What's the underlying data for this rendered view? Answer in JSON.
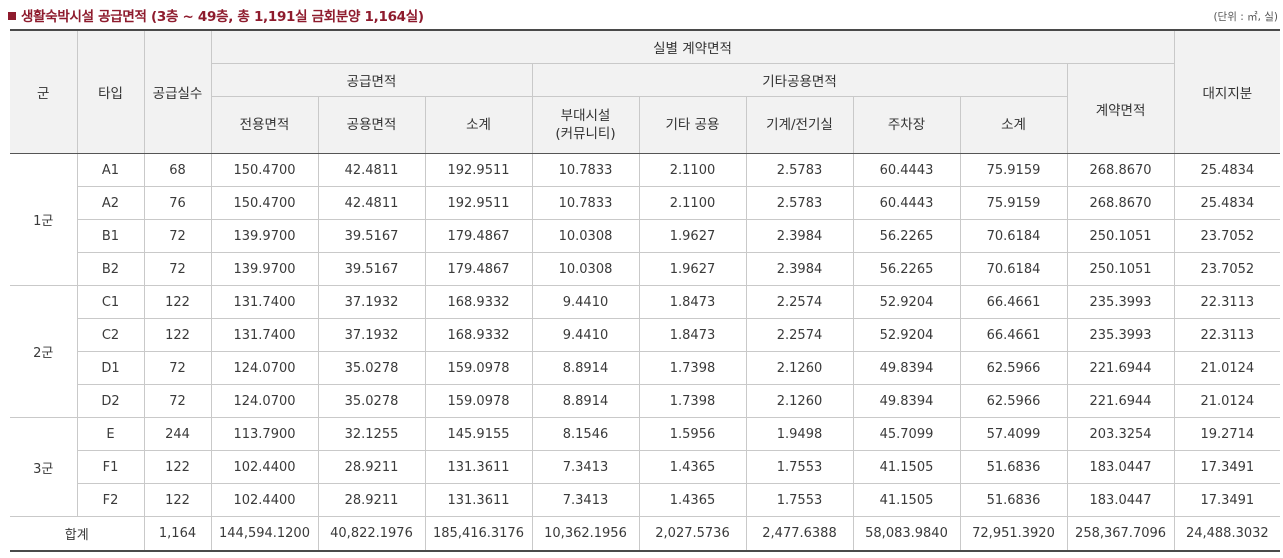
{
  "title": "생활숙박시설 공급면적 (3층 ~ 49층, 총 1,191실 금회분양 1,164실)",
  "unit": "(단위 : ㎡, 실)",
  "headers": {
    "group": "군",
    "type": "타입",
    "units": "공급실수",
    "contract_by_unit": "실별 계약면적",
    "supply_area": "공급면적",
    "exclusive": "전용면적",
    "common": "공용면적",
    "supply_subtotal": "소계",
    "other_common": "기타공용면적",
    "amenity_line1": "부대시설",
    "amenity_line2": "(커뮤니티)",
    "other_shared": "기타 공용",
    "mech_elec": "기계/전기실",
    "parking": "주차장",
    "other_subtotal": "소계",
    "contract_area": "계약면적",
    "land_share": "대지지분"
  },
  "groups": [
    {
      "name": "1군",
      "rows": [
        [
          "A1",
          "68",
          "150.4700",
          "42.4811",
          "192.9511",
          "10.7833",
          "2.1100",
          "2.5783",
          "60.4443",
          "75.9159",
          "268.8670",
          "25.4834"
        ],
        [
          "A2",
          "76",
          "150.4700",
          "42.4811",
          "192.9511",
          "10.7833",
          "2.1100",
          "2.5783",
          "60.4443",
          "75.9159",
          "268.8670",
          "25.4834"
        ],
        [
          "B1",
          "72",
          "139.9700",
          "39.5167",
          "179.4867",
          "10.0308",
          "1.9627",
          "2.3984",
          "56.2265",
          "70.6184",
          "250.1051",
          "23.7052"
        ],
        [
          "B2",
          "72",
          "139.9700",
          "39.5167",
          "179.4867",
          "10.0308",
          "1.9627",
          "2.3984",
          "56.2265",
          "70.6184",
          "250.1051",
          "23.7052"
        ]
      ]
    },
    {
      "name": "2군",
      "rows": [
        [
          "C1",
          "122",
          "131.7400",
          "37.1932",
          "168.9332",
          "9.4410",
          "1.8473",
          "2.2574",
          "52.9204",
          "66.4661",
          "235.3993",
          "22.3113"
        ],
        [
          "C2",
          "122",
          "131.7400",
          "37.1932",
          "168.9332",
          "9.4410",
          "1.8473",
          "2.2574",
          "52.9204",
          "66.4661",
          "235.3993",
          "22.3113"
        ],
        [
          "D1",
          "72",
          "124.0700",
          "35.0278",
          "159.0978",
          "8.8914",
          "1.7398",
          "2.1260",
          "49.8394",
          "62.5966",
          "221.6944",
          "21.0124"
        ],
        [
          "D2",
          "72",
          "124.0700",
          "35.0278",
          "159.0978",
          "8.8914",
          "1.7398",
          "2.1260",
          "49.8394",
          "62.5966",
          "221.6944",
          "21.0124"
        ]
      ]
    },
    {
      "name": "3군",
      "rows": [
        [
          "E",
          "244",
          "113.7900",
          "32.1255",
          "145.9155",
          "8.1546",
          "1.5956",
          "1.9498",
          "45.7099",
          "57.4099",
          "203.3254",
          "19.2714"
        ],
        [
          "F1",
          "122",
          "102.4400",
          "28.9211",
          "131.3611",
          "7.3413",
          "1.4365",
          "1.7553",
          "41.1505",
          "51.6836",
          "183.0447",
          "17.3491"
        ],
        [
          "F2",
          "122",
          "102.4400",
          "28.9211",
          "131.3611",
          "7.3413",
          "1.4365",
          "1.7553",
          "41.1505",
          "51.6836",
          "183.0447",
          "17.3491"
        ]
      ]
    }
  ],
  "total": {
    "label": "합계",
    "values": [
      "1,164",
      "144,594.1200",
      "40,822.1976",
      "185,416.3176",
      "10,362.1956",
      "2,027.5736",
      "2,477.6388",
      "58,083.9840",
      "72,951.3920",
      "258,367.7096",
      "24,488.3032"
    ]
  }
}
